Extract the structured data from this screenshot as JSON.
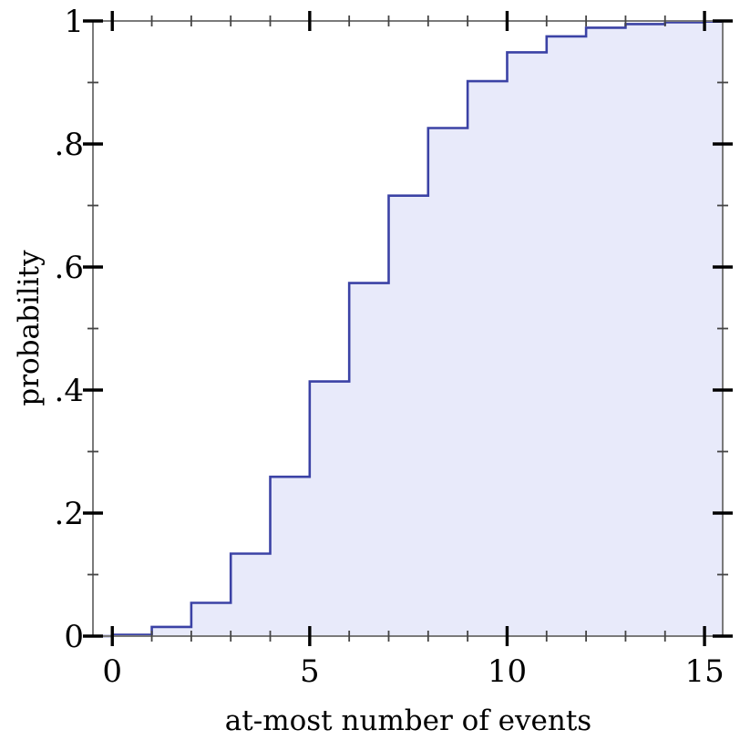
{
  "chart_data": {
    "type": "area",
    "subtype": "step-cdf",
    "title": "",
    "xlabel": "at-most number of events",
    "ylabel": "probability",
    "x": [
      0,
      1,
      2,
      3,
      4,
      5,
      6,
      7,
      8,
      9,
      10,
      11,
      12,
      13,
      14,
      15
    ],
    "values": [
      0.002,
      0.015,
      0.054,
      0.134,
      0.259,
      0.414,
      0.574,
      0.716,
      0.826,
      0.902,
      0.949,
      0.975,
      0.989,
      0.995,
      0.998,
      0.999
    ],
    "xlim": [
      -0.49,
      15.46
    ],
    "ylim": [
      0,
      1
    ],
    "x_major_ticks": [
      0,
      5,
      10,
      15
    ],
    "x_major_labels": [
      "0",
      "5",
      "10",
      "15"
    ],
    "x_minor_ticks": [
      1,
      2,
      3,
      4,
      6,
      7,
      8,
      9,
      11,
      12,
      13,
      14
    ],
    "y_major_ticks": [
      0,
      0.2,
      0.4,
      0.6,
      0.8,
      1
    ],
    "y_major_labels": [
      "0",
      ".2",
      ".4",
      ".6",
      ".8",
      "1"
    ],
    "y_minor_ticks": [
      0.1,
      0.3,
      0.5,
      0.7,
      0.9
    ],
    "grid": false,
    "legend": null,
    "colors": {
      "line": "#3b42a5",
      "fill": "#e8eafa",
      "spine": "#7a7a7a",
      "major_tick": "#000000",
      "minor_tick": "#444444",
      "text": "#000000",
      "background": "#ffffff"
    }
  }
}
